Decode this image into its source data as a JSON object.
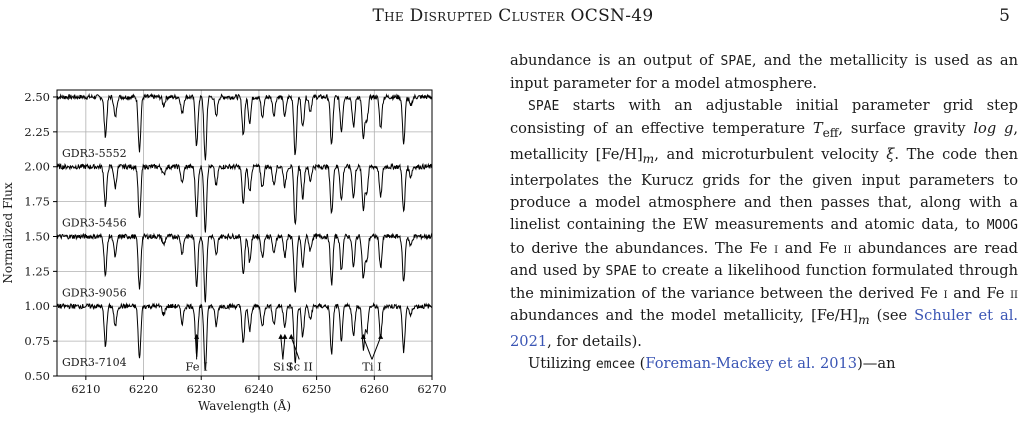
{
  "header": {
    "title": "The Disrupted Cluster OCSN-49",
    "page_number": "5"
  },
  "figure": {
    "chart_data": {
      "type": "line",
      "xlabel": "Wavelength (Å)",
      "ylabel": "Normalized Flux",
      "xlim": [
        6205,
        6270
      ],
      "ylim": [
        0.5,
        2.55
      ],
      "x_ticks": [
        "6210",
        "6220",
        "6230",
        "6240",
        "6250",
        "6260",
        "6270"
      ],
      "y_ticks": [
        "0.50",
        "0.75",
        "1.00",
        "1.25",
        "1.50",
        "1.75",
        "2.00",
        "2.25",
        "2.50"
      ],
      "grid": true,
      "series": [
        {
          "name": "GDR3-5552",
          "continuum": 2.5,
          "label_y": 2.1
        },
        {
          "name": "GDR3-5456",
          "continuum": 2.0,
          "label_y": 1.6
        },
        {
          "name": "GDR3-9056",
          "continuum": 1.5,
          "label_y": 1.1
        },
        {
          "name": "GDR3-7104",
          "continuum": 1.0,
          "label_y": 0.6
        }
      ],
      "absorption_lines": [
        {
          "wl": 6213.4,
          "depth": 0.28
        },
        {
          "wl": 6215.1,
          "depth": 0.15
        },
        {
          "wl": 6219.3,
          "depth": 0.38
        },
        {
          "wl": 6223.5,
          "depth": 0.06
        },
        {
          "wl": 6226.7,
          "depth": 0.12
        },
        {
          "wl": 6229.2,
          "depth": 0.35
        },
        {
          "wl": 6230.7,
          "depth": 0.46
        },
        {
          "wl": 6232.6,
          "depth": 0.14
        },
        {
          "wl": 6237.3,
          "depth": 0.27
        },
        {
          "wl": 6238.4,
          "depth": 0.18
        },
        {
          "wl": 6240.6,
          "depth": 0.15
        },
        {
          "wl": 6242.6,
          "depth": 0.13
        },
        {
          "wl": 6244.5,
          "depth": 0.14
        },
        {
          "wl": 6246.3,
          "depth": 0.42
        },
        {
          "wl": 6247.6,
          "depth": 0.22
        },
        {
          "wl": 6248.9,
          "depth": 0.1
        },
        {
          "wl": 6252.6,
          "depth": 0.34
        },
        {
          "wl": 6254.3,
          "depth": 0.24
        },
        {
          "wl": 6256.4,
          "depth": 0.22
        },
        {
          "wl": 6258.1,
          "depth": 0.3
        },
        {
          "wl": 6258.7,
          "depth": 0.18
        },
        {
          "wl": 6261.1,
          "depth": 0.22
        },
        {
          "wl": 6265.1,
          "depth": 0.33
        },
        {
          "wl": 6266.3,
          "depth": 0.07
        }
      ],
      "annotations": [
        {
          "label": "Fe I",
          "arrows_to": [
            6229.2
          ]
        },
        {
          "label": "Si I",
          "arrows_to": [
            6243.8,
            6244.5
          ]
        },
        {
          "label": "Sc II",
          "arrows_to": [
            6245.6
          ]
        },
        {
          "label": "Ti I",
          "arrows_to": [
            6258.1,
            6261.1
          ]
        }
      ]
    }
  },
  "text": {
    "p1": {
      "a": "abundance is an output of ",
      "code": "SPAE",
      "b": ", and the metallicity is used as an input parameter for a model atmosphere."
    },
    "p2": {
      "code1": "SPAE",
      "a": " starts with an adjustable initial parameter grid step consisting of an effective temperature ",
      "teff": "T",
      "teff_sub": "eff",
      "b": ", surface gravity ",
      "logg": "log g",
      "c": ", metallicity [Fe/H]",
      "m_sub": "m",
      "d": ", and microturbulent velocity ",
      "xi": "ξ",
      "e": ". The code then interpolates the Kurucz grids for the given input parameters to produce a model atmosphere and then passes that, along with a linelist containing the EW measurements and atomic data, to ",
      "code2": "MOOG",
      "f": " to derive the abundances. The Fe ",
      "fe1": "i",
      "g": " and Fe ",
      "fe2": "ii",
      "h": " abundances are read and used by ",
      "code3": "SPAE",
      "i": " to create a likelihood function formulated through the minimization of the variance between the derived Fe ",
      "fe1b": "i",
      "j": " and Fe ",
      "fe2b": "ii",
      "k": " abundances and the model metallicity, [Fe/H]",
      "m_sub2": "m",
      "l": " (see ",
      "cite": "Schuler et al. 2021",
      "m": ", for details)."
    },
    "p3": {
      "a": "Utilizing ",
      "code": "emcee",
      "b": " (",
      "cite": "Foreman-Mackey et al. 2013",
      "c": ")—an"
    }
  },
  "colors": {
    "citation": "#3a55b4",
    "grid": "#b0b0b0",
    "spectrum": "#000000"
  }
}
